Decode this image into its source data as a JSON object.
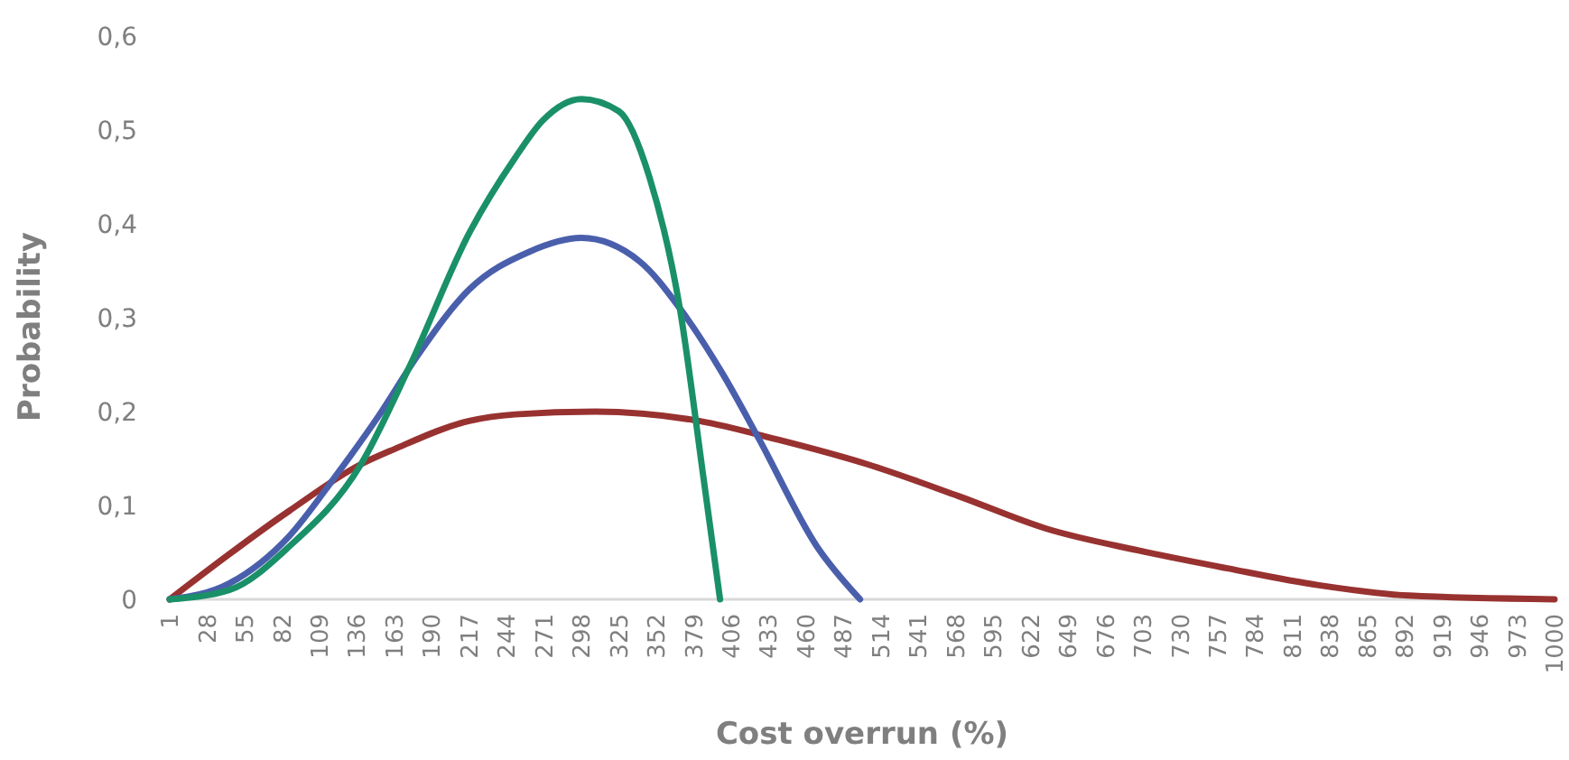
{
  "chart_data": {
    "type": "line",
    "xlabel": "Cost overrun (%)",
    "ylabel": "Probability",
    "xlim": [
      1,
      1000
    ],
    "xticks": [
      1,
      28,
      55,
      82,
      109,
      136,
      163,
      190,
      217,
      244,
      271,
      298,
      325,
      352,
      379,
      406,
      433,
      460,
      487,
      514,
      541,
      568,
      595,
      622,
      649,
      676,
      703,
      730,
      757,
      784,
      811,
      838,
      865,
      892,
      919,
      946,
      973,
      1000
    ],
    "ylim": [
      0,
      0.6
    ],
    "yticks": [
      {
        "value": 0,
        "label": "0"
      },
      {
        "value": 0.1,
        "label": "0,1"
      },
      {
        "value": 0.2,
        "label": "0,2"
      },
      {
        "value": 0.3,
        "label": "0,3"
      },
      {
        "value": 0.4,
        "label": "0,4"
      },
      {
        "value": 0.5,
        "label": "0,5"
      },
      {
        "value": 0.6,
        "label": "0,6"
      }
    ],
    "grid": false,
    "marker": "none",
    "line_style": "solid",
    "series": [
      {
        "color": "#983230",
        "x": [
          1,
          87,
          139,
          163,
          217,
          250,
          308,
          383,
          440,
          504,
          570,
          634,
          700,
          764,
          830,
          895,
          1000
        ],
        "values": [
          0,
          0.094,
          0.144,
          0.16,
          0.19,
          0.197,
          0.2,
          0.19,
          0.17,
          0.144,
          0.11,
          0.075,
          0.052,
          0.033,
          0.015,
          0.004,
          0
        ]
      },
      {
        "color": "#4a5fac",
        "x": [
          1,
          44,
          87,
          120,
          152,
          180,
          217,
          260,
          298,
          340,
          369,
          400,
          426,
          468,
          499
        ],
        "values": [
          0,
          0.017,
          0.067,
          0.13,
          0.196,
          0.26,
          0.33,
          0.37,
          0.385,
          0.36,
          0.31,
          0.24,
          0.171,
          0.056,
          0
        ]
      },
      {
        "color": "#1a9068",
        "x": [
          1,
          44,
          87,
          139,
          174,
          217,
          250,
          270,
          298,
          325,
          347,
          369,
          386,
          398
        ],
        "values": [
          0,
          0.01,
          0.056,
          0.144,
          0.248,
          0.39,
          0.47,
          0.51,
          0.533,
          0.52,
          0.45,
          0.31,
          0.13,
          0
        ]
      }
    ]
  }
}
